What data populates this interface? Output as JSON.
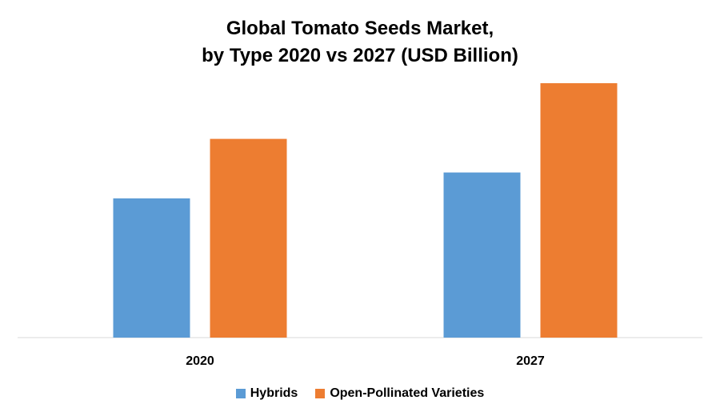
{
  "chart_data": {
    "type": "bar",
    "title_line1": "Global Tomato Seeds Market,",
    "title_line2": "by Type 2020 vs 2027 (USD Billion)",
    "xlabel": "",
    "ylabel": "",
    "categories": [
      "2020",
      "2027"
    ],
    "series": [
      {
        "name": "Hybrids",
        "color": "#5B9BD5",
        "values": [
          1.45,
          1.72
        ]
      },
      {
        "name": "Open-Pollinated Varieties",
        "color": "#ED7D31",
        "values": [
          2.07,
          2.65
        ]
      }
    ],
    "ylim": [
      0,
      3.0
    ],
    "grid": false,
    "legend_position": "bottom"
  }
}
